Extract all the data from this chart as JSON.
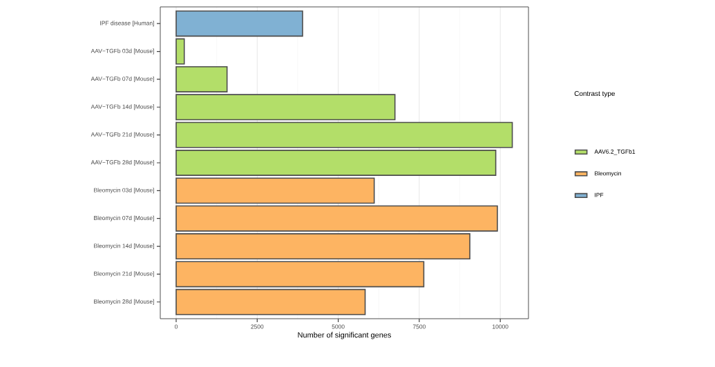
{
  "chart_data": {
    "type": "bar",
    "orientation": "horizontal",
    "xlabel": "Number of significant genes",
    "legend_title": "Contrast type",
    "categories": [
      "IPF disease [Human]",
      "AAV−TGFb 03d [Mouse]",
      "AAV−TGFb 07d [Mouse]",
      "AAV−TGFb 14d [Mouse]",
      "AAV−TGFb 21d [Mouse]",
      "AAV−TGFb 28d [Mouse]",
      "Bleomycin 03d [Mouse]",
      "Bleomycin 07d [Mouse]",
      "Bleomycin 14d [Mouse]",
      "Bleomycin 21d [Mouse]",
      "Bleomycin 28d [Mouse]"
    ],
    "series": [
      {
        "name": "AAV6.2_TGFb1",
        "color": "#b3de69",
        "values": [
          null,
          250,
          1570,
          6750,
          10370,
          9860,
          null,
          null,
          null,
          null,
          null
        ]
      },
      {
        "name": "Bleomycin",
        "color": "#fdb462",
        "values": [
          null,
          null,
          null,
          null,
          null,
          null,
          6110,
          9910,
          9060,
          7640,
          5830
        ]
      },
      {
        "name": "IPF",
        "color": "#80b1d3",
        "values": [
          3900,
          null,
          null,
          null,
          null,
          null,
          null,
          null,
          null,
          null,
          null
        ]
      }
    ],
    "xlim": [
      -490,
      10870
    ],
    "xticks": [
      0,
      2500,
      5000,
      7500,
      10000
    ],
    "grid": "x",
    "legend": "right"
  }
}
